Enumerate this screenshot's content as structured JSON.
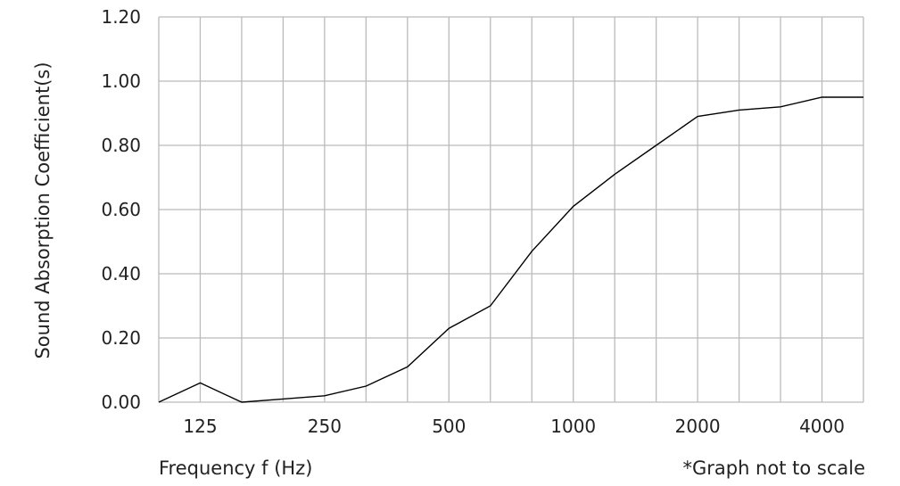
{
  "chart_data": {
    "type": "line",
    "ylabel": "Sound Absorption Coefficient(s)",
    "xlabel": "Frequency f (Hz)",
    "note": "*Graph not to scale",
    "ylim": [
      0,
      1.2
    ],
    "y_ticks": [
      "0.00",
      "0.20",
      "0.40",
      "0.60",
      "0.80",
      "1.00",
      "1.20"
    ],
    "x_ticks": [
      "125",
      "250",
      "500",
      "1000",
      "2000",
      "4000"
    ],
    "x": [
      100,
      125,
      160,
      200,
      250,
      315,
      400,
      500,
      630,
      800,
      1000,
      1250,
      1600,
      2000,
      2500,
      3150,
      4000,
      5000
    ],
    "series": [
      {
        "values": [
          0.0,
          0.06,
          0.0,
          0.01,
          0.02,
          0.05,
          0.11,
          0.23,
          0.3,
          0.47,
          0.61,
          0.71,
          0.8,
          0.89,
          0.91,
          0.92,
          0.95,
          0.95
        ]
      }
    ],
    "grid": true,
    "colors": {
      "line": "#000000",
      "grid": "#bbbbbb"
    }
  }
}
